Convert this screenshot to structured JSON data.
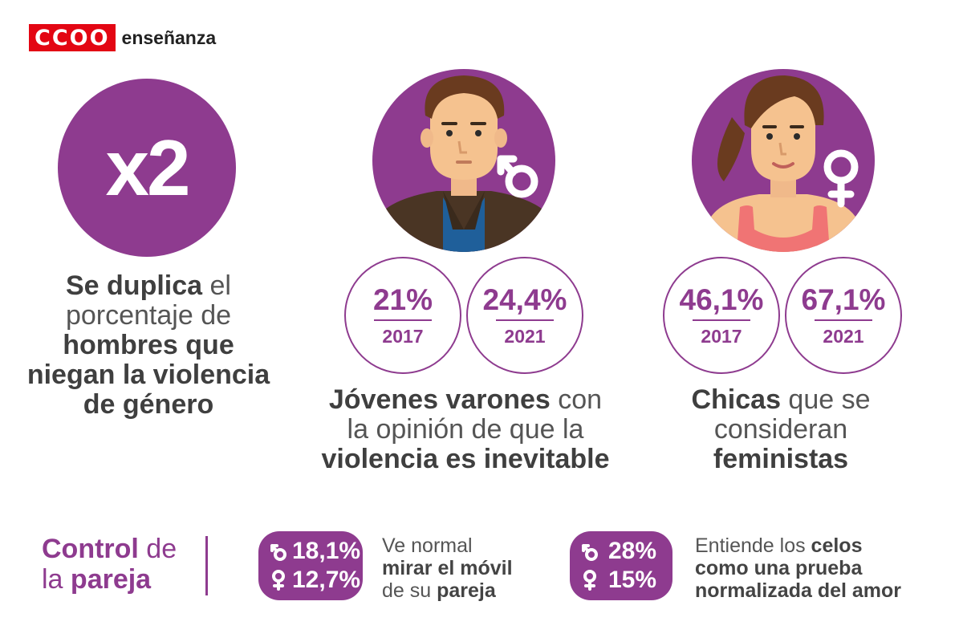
{
  "logo": {
    "mark": "CCOO",
    "word": "enseñanza"
  },
  "headline_stat": {
    "value": "x2",
    "text": {
      "p1": "Se duplica",
      "p2": " el",
      "p3": "porcentaje de",
      "p4": "hombres que",
      "p5": "niegan la violencia",
      "p6": "de género"
    }
  },
  "men_inevitable": {
    "symbol_icon": "male-symbol-icon",
    "stats": [
      {
        "value": "21%",
        "year": "2017"
      },
      {
        "value": "24,4%",
        "year": "2021"
      }
    ],
    "caption": {
      "p1": "Jóvenes varones",
      "p2": " con",
      "p3": "la opinión de que la",
      "p4": "violencia es inevitable"
    }
  },
  "women_feminist": {
    "symbol_icon": "female-symbol-icon",
    "stats": [
      {
        "value": "46,1%",
        "year": "2017"
      },
      {
        "value": "67,1%",
        "year": "2021"
      }
    ],
    "caption": {
      "p1": "Chicas",
      "p2": " que se",
      "p3": "consideran",
      "p4": "feministas"
    }
  },
  "control": {
    "title": {
      "p1": "Control",
      "p2": " de",
      "p3": "la ",
      "p4": "pareja"
    },
    "items": [
      {
        "male_value": "18,1%",
        "female_value": "12,7%",
        "desc": {
          "l1": "Ve normal",
          "l2": "mirar el móvil",
          "l3a": "de su ",
          "l3b": "pareja"
        }
      },
      {
        "male_value": "28%",
        "female_value": "15%",
        "desc": {
          "l1a": "Entiende los ",
          "l1b": "celos",
          "l2": "como una prueba",
          "l3": "normalizada del amor"
        }
      }
    ]
  },
  "colors": {
    "purple": "#8e3b8f",
    "red": "#e30613",
    "text": "#555555"
  }
}
